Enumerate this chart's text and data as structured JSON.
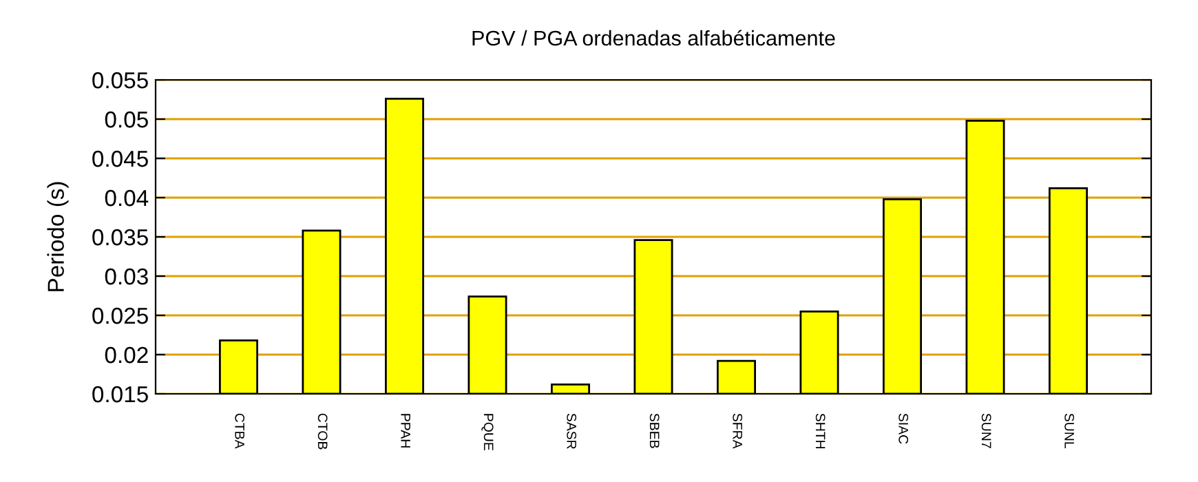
{
  "chart_data": {
    "type": "bar",
    "title": "PGV / PGA ordenadas alfabéticamente",
    "ylabel": "Periodo (s)",
    "categories": [
      "CTBA",
      "CTOB",
      "PPAH",
      "PQUE",
      "SASR",
      "SBEB",
      "SFRA",
      "SHTH",
      "SIAC",
      "SUN7",
      "SUNL"
    ],
    "values": [
      0.0218,
      0.0358,
      0.0526,
      0.0274,
      0.0162,
      0.0346,
      0.0192,
      0.0255,
      0.0398,
      0.0498,
      0.0412
    ],
    "color": "#ffff00",
    "ylim": [
      0.015,
      0.055
    ],
    "yticks": [
      0.015,
      0.02,
      0.025,
      0.03,
      0.035,
      0.04,
      0.045,
      0.05,
      0.055
    ],
    "grid": "y"
  }
}
